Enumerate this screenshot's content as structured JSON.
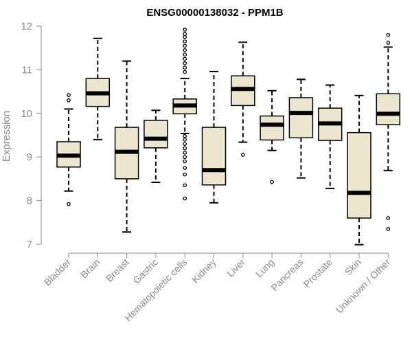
{
  "chart_data": {
    "type": "boxplot",
    "title": "ENSG00000138032 - PPM1B",
    "xlabel": "",
    "ylabel": "Expression",
    "ylim": [
      7,
      12
    ],
    "yticks": [
      7,
      8,
      9,
      10,
      11,
      12
    ],
    "box_color": "#ede6cf",
    "line_color": "#000000",
    "axis_color": "#8a8a8a",
    "categories": [
      "Bladder",
      "Brain",
      "Breast",
      "Gastric",
      "Hematopoietic cells",
      "Kidney",
      "Liver",
      "Lung",
      "Pancreas",
      "Prostate",
      "Skin",
      "Unknown / Other"
    ],
    "boxes": [
      {
        "name": "Bladder",
        "whisker_low": 8.22,
        "q1": 8.77,
        "median": 9.03,
        "q3": 9.35,
        "whisker_high": 10.1,
        "outliers": [
          7.92,
          10.3,
          10.42
        ]
      },
      {
        "name": "Brain",
        "whisker_low": 9.4,
        "q1": 10.16,
        "median": 10.46,
        "q3": 10.8,
        "whisker_high": 11.72,
        "outliers": []
      },
      {
        "name": "Breast",
        "whisker_low": 7.28,
        "q1": 8.5,
        "median": 9.12,
        "q3": 9.68,
        "whisker_high": 11.2,
        "outliers": []
      },
      {
        "name": "Gastric",
        "whisker_low": 8.42,
        "q1": 9.21,
        "median": 9.42,
        "q3": 9.84,
        "whisker_high": 10.07,
        "outliers": []
      },
      {
        "name": "Hematopoietic cells",
        "whisker_low": 9.54,
        "q1": 9.99,
        "median": 10.18,
        "q3": 10.33,
        "whisker_high": 10.8,
        "outliers": [
          8.05,
          8.35,
          8.6,
          8.75,
          8.9,
          9.0,
          9.1,
          9.2,
          9.3,
          9.4,
          9.48,
          10.95,
          11.05,
          11.15,
          11.25,
          11.35,
          11.45,
          11.55,
          11.65,
          11.75,
          11.82,
          11.92
        ]
      },
      {
        "name": "Kidney",
        "whisker_low": 7.95,
        "q1": 8.36,
        "median": 8.7,
        "q3": 9.68,
        "whisker_high": 10.96,
        "outliers": []
      },
      {
        "name": "Liver",
        "whisker_low": 9.34,
        "q1": 10.18,
        "median": 10.56,
        "q3": 10.86,
        "whisker_high": 11.63,
        "outliers": [
          9.05
        ]
      },
      {
        "name": "Lung",
        "whisker_low": 9.15,
        "q1": 9.39,
        "median": 9.74,
        "q3": 9.94,
        "whisker_high": 10.52,
        "outliers": [
          8.43
        ]
      },
      {
        "name": "Pancreas",
        "whisker_low": 8.52,
        "q1": 9.44,
        "median": 10.01,
        "q3": 10.36,
        "whisker_high": 10.78,
        "outliers": []
      },
      {
        "name": "Prostate",
        "whisker_low": 8.28,
        "q1": 9.38,
        "median": 9.77,
        "q3": 10.12,
        "whisker_high": 10.65,
        "outliers": []
      },
      {
        "name": "Skin",
        "whisker_low": 6.99,
        "q1": 7.6,
        "median": 8.18,
        "q3": 9.56,
        "whisker_high": 10.41,
        "outliers": []
      },
      {
        "name": "Unknown / Other",
        "whisker_low": 8.69,
        "q1": 9.74,
        "median": 9.99,
        "q3": 10.45,
        "whisker_high": 11.52,
        "outliers": [
          7.35,
          7.6,
          11.62,
          11.8
        ]
      }
    ]
  }
}
